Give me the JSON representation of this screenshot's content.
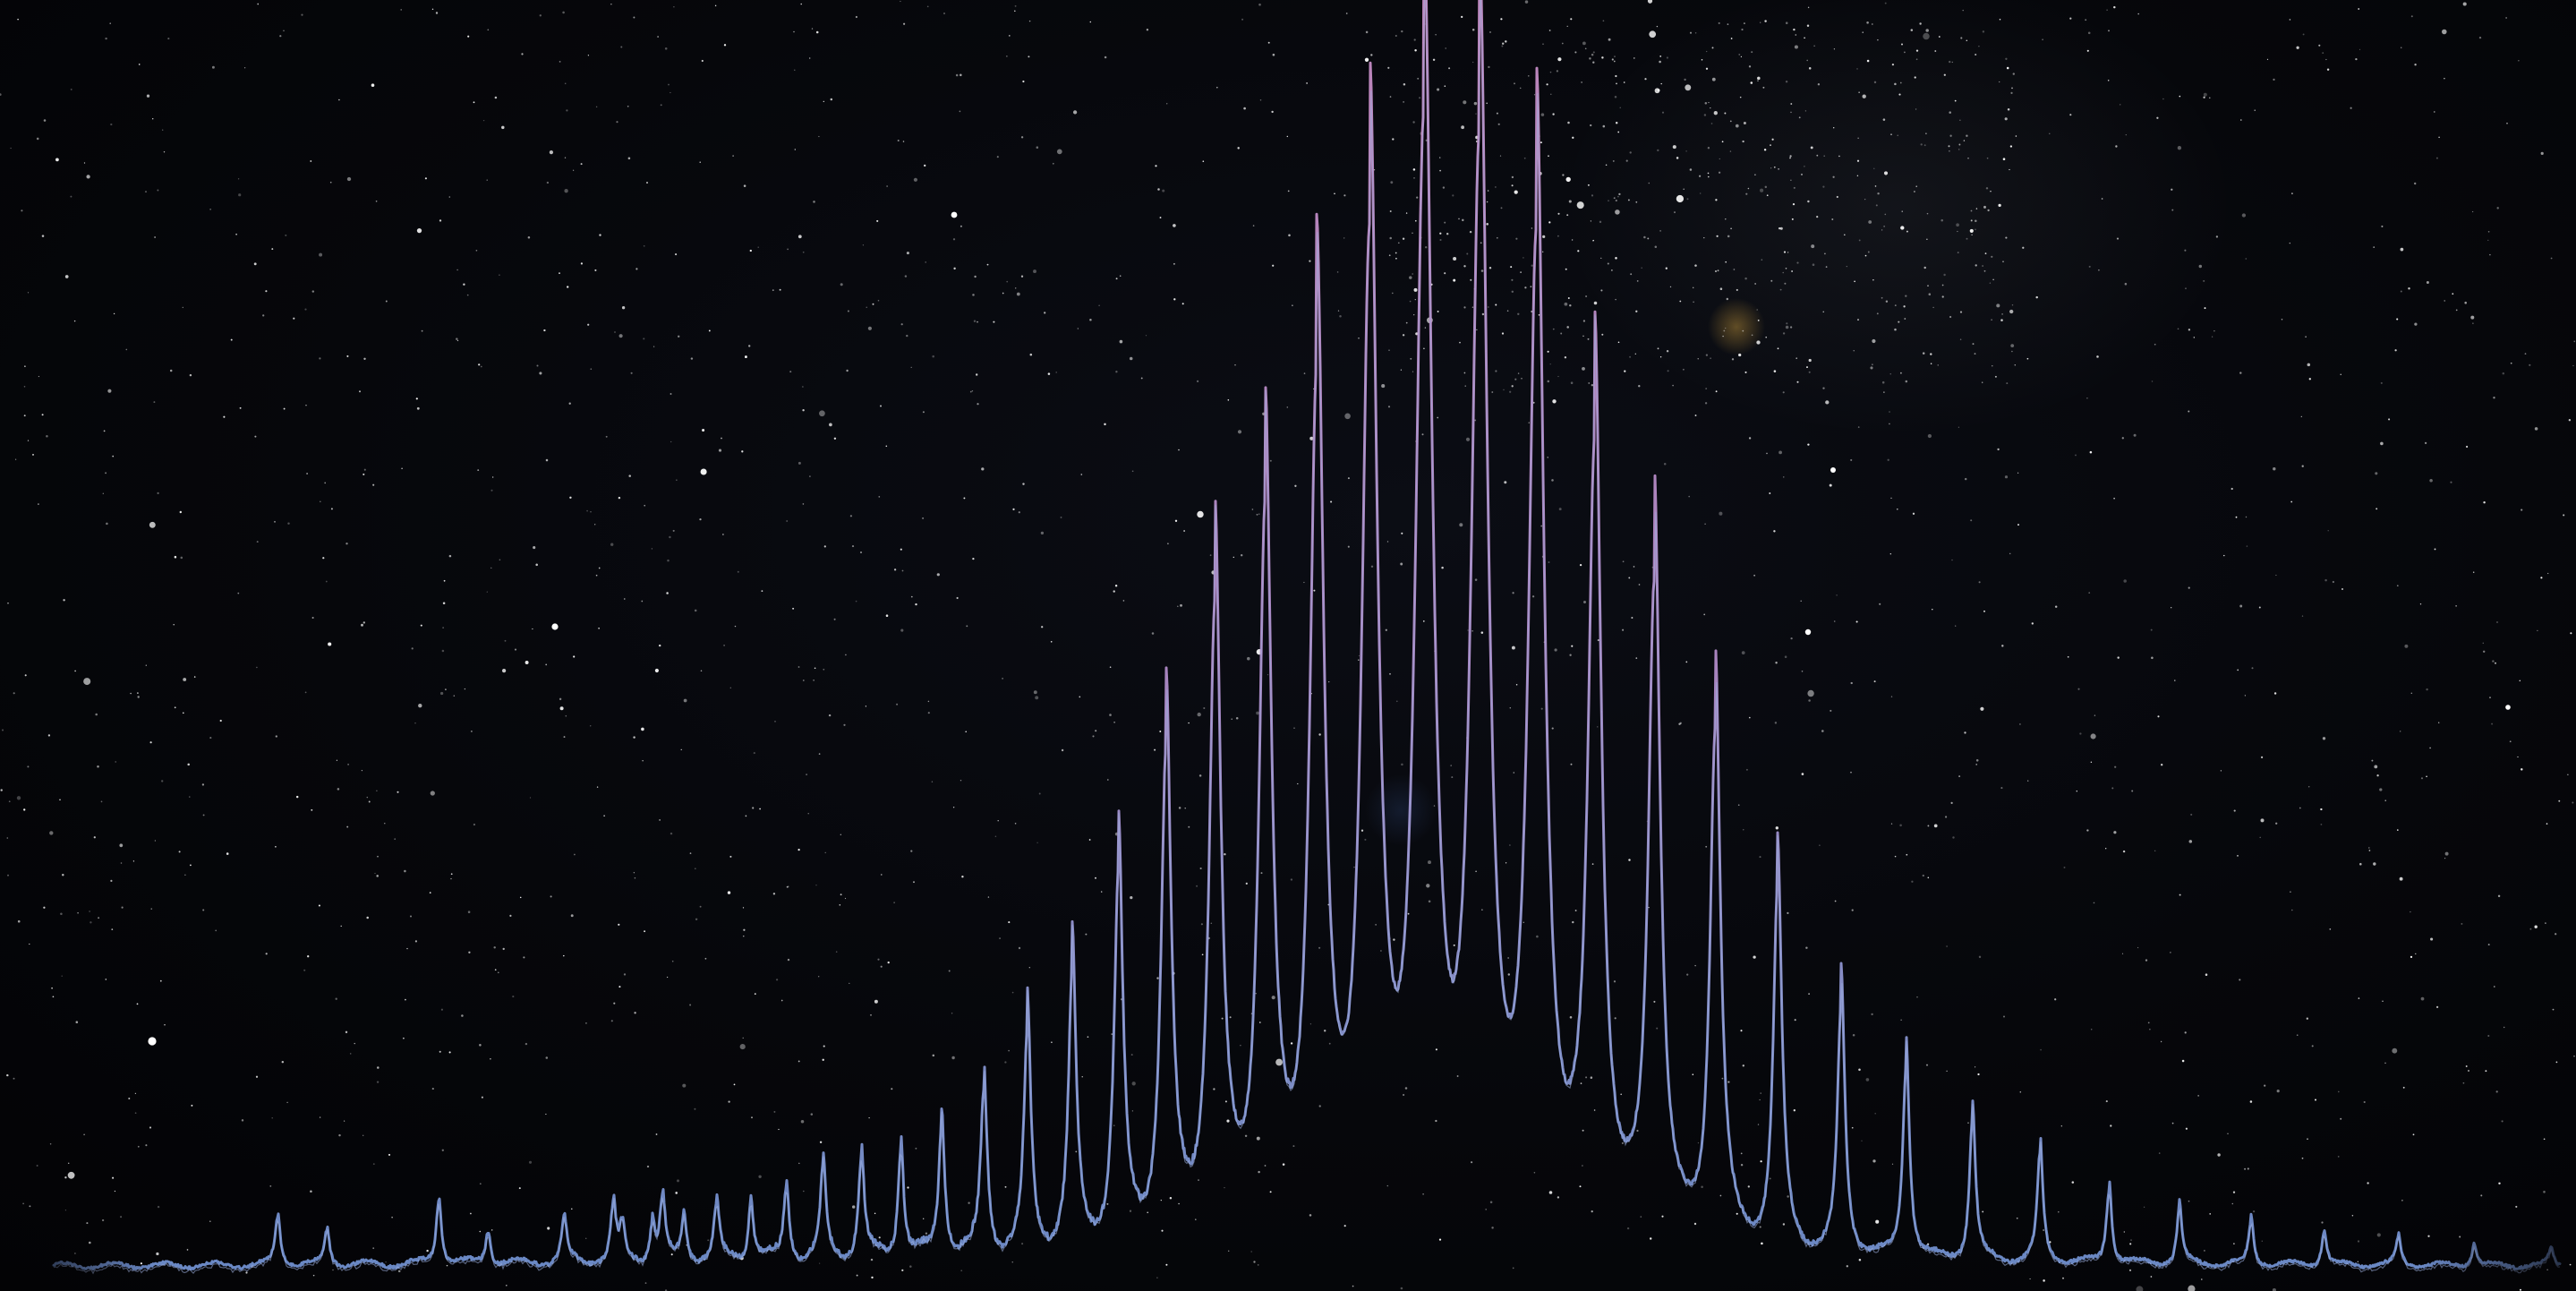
{
  "scene": {
    "description_name": "spectrum-over-starfield",
    "colors": {
      "background": "#05060a",
      "star": "#ffffff",
      "spectrum_low": "#6f8fce",
      "spectrum_high": "#c98cc4",
      "nebula_glow": "#c89a3c"
    }
  },
  "spectrum": {
    "comb_peaks": [
      0.03,
      0.035,
      0.04,
      0.05,
      0.055,
      0.065,
      0.08,
      0.09,
      0.1,
      0.12,
      0.15,
      0.2,
      0.25,
      0.34,
      0.45,
      0.58,
      0.66,
      0.78,
      0.9,
      1.0,
      0.98,
      0.9,
      0.72,
      0.61,
      0.48,
      0.33,
      0.23,
      0.18,
      0.13,
      0.1,
      0.07,
      0.05,
      0.04,
      0.03,
      0.025,
      0.02,
      0.015
    ],
    "low_peaks": [
      0.045,
      0.032,
      0.06,
      0.03,
      0.04,
      0.05,
      0.055
    ]
  }
}
